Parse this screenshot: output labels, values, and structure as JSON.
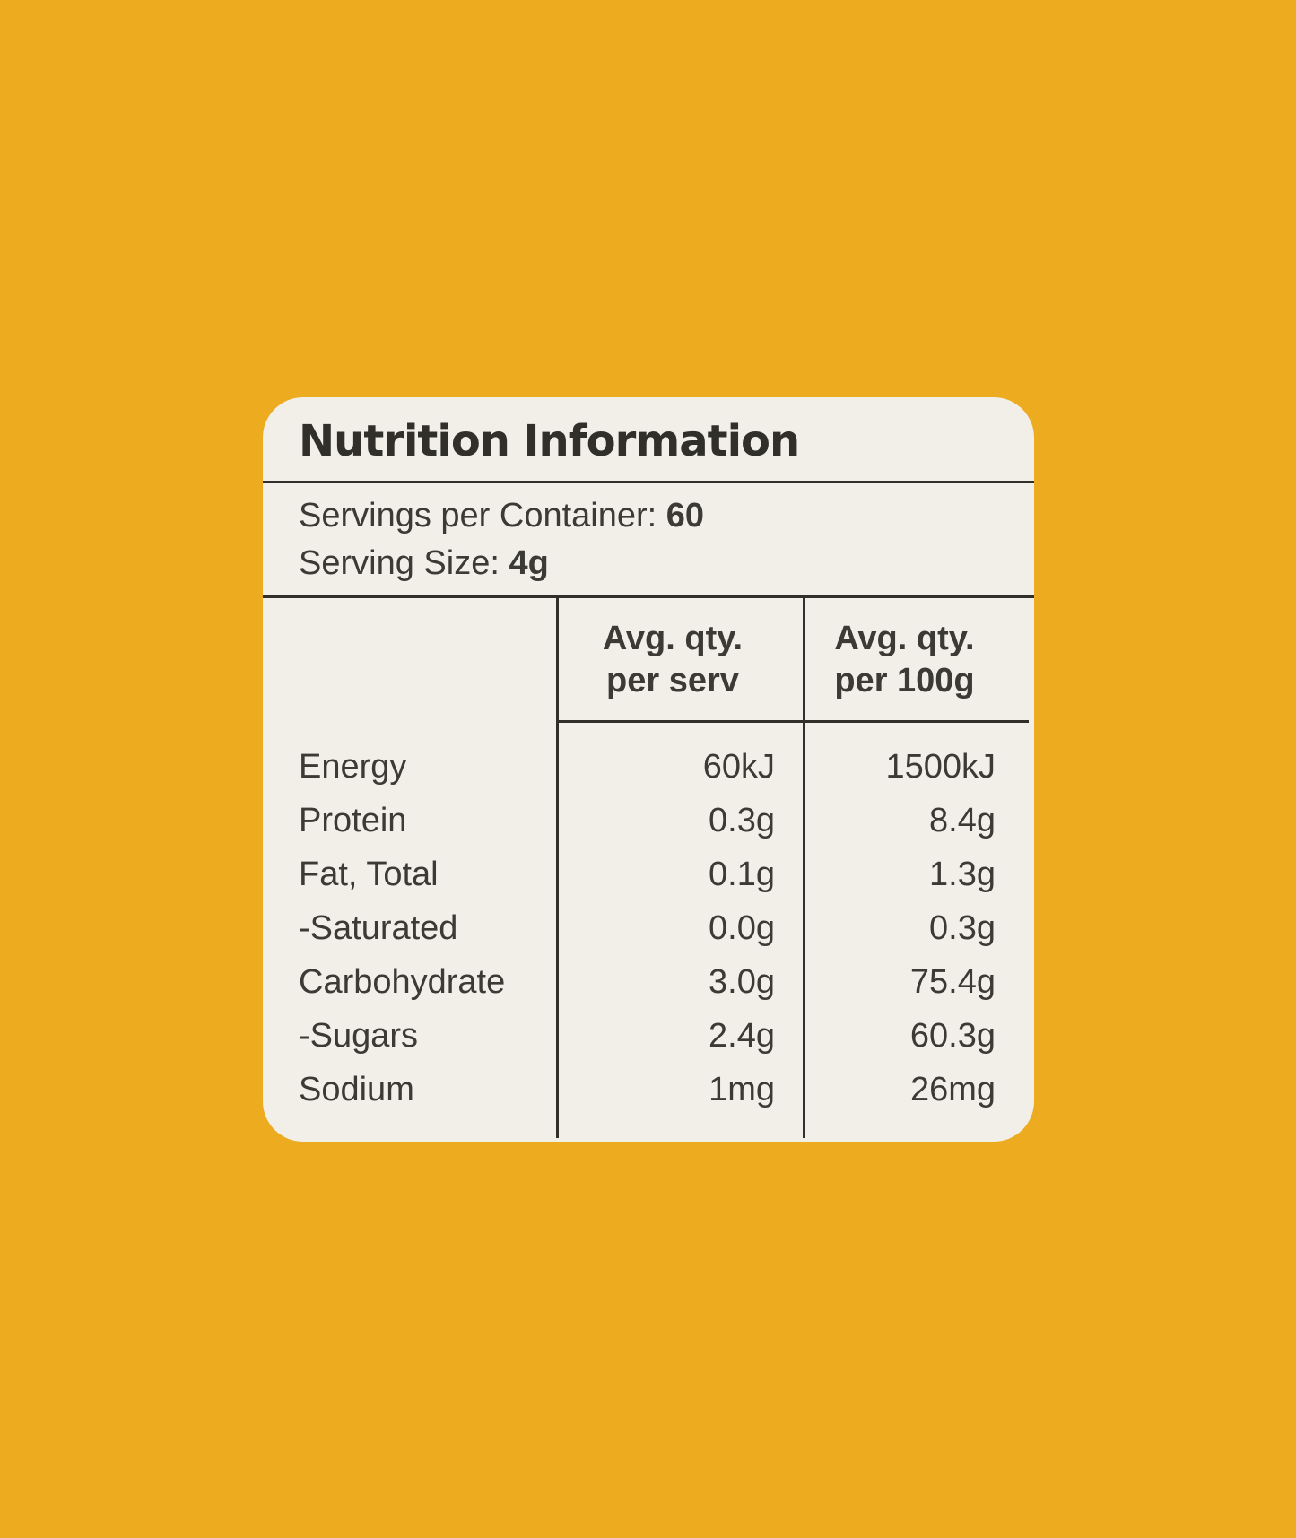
{
  "colors": {
    "bg": "#EDAC1F",
    "card": "#F2EFE9",
    "ink": "#3B3A34",
    "line": "#302F2A"
  },
  "label": {
    "title": "Nutrition Information",
    "serving": {
      "container_label": "Servings per Container:",
      "container_value": "60",
      "size_label": "Serving Size:",
      "size_value": "4g"
    },
    "table": {
      "header": {
        "per_serv": {
          "line1": "Avg. qty.",
          "line2": "per serv"
        },
        "per_100g": {
          "line1": "Avg. qty.",
          "line2": "per 100g"
        }
      },
      "rows": [
        {
          "nutrient": "Energy",
          "per_serv": "60kJ",
          "per_100g": "1500kJ"
        },
        {
          "nutrient": "Protein",
          "per_serv": "0.3g",
          "per_100g": "8.4g"
        },
        {
          "nutrient": "Fat, Total",
          "per_serv": "0.1g",
          "per_100g": "1.3g"
        },
        {
          "nutrient": "-Saturated",
          "per_serv": "0.0g",
          "per_100g": "0.3g"
        },
        {
          "nutrient": "Carbohydrate",
          "per_serv": "3.0g",
          "per_100g": "75.4g"
        },
        {
          "nutrient": "-Sugars",
          "per_serv": "2.4g",
          "per_100g": "60.3g"
        },
        {
          "nutrient": "Sodium",
          "per_serv": "1mg",
          "per_100g": "26mg"
        }
      ]
    }
  }
}
